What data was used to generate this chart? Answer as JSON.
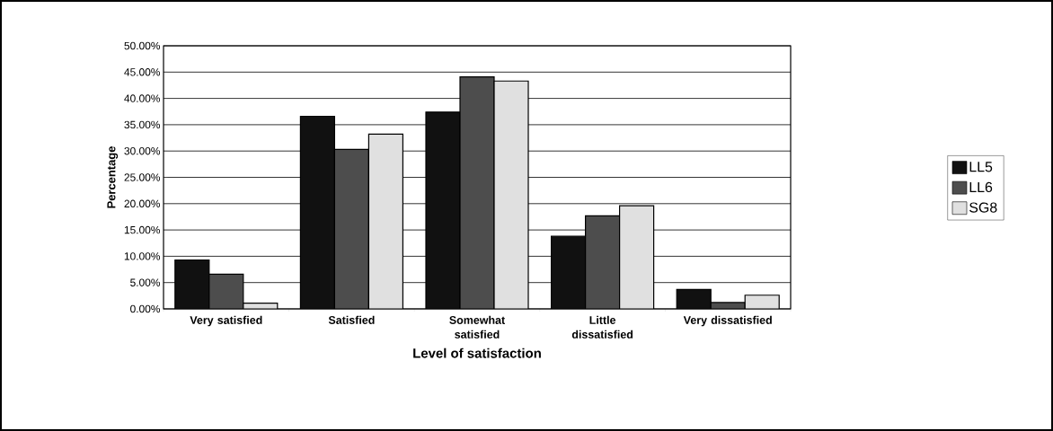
{
  "chart_data": {
    "type": "bar",
    "xlabel": "Level of satisfaction",
    "ylabel": "Percentage",
    "categories": [
      "Very satisfied",
      "Satisfied",
      "Somewhat satisfied",
      "Little dissatisfied",
      "Very dissatisfied"
    ],
    "series": [
      {
        "name": "LL5",
        "color": "#111111",
        "values": [
          9.3,
          36.6,
          37.4,
          13.8,
          3.7
        ]
      },
      {
        "name": "LL6",
        "color": "#4d4d4d",
        "values": [
          6.6,
          30.3,
          44.1,
          17.7,
          1.2
        ]
      },
      {
        "name": "SG8",
        "color": "#e0e0e0",
        "values": [
          1.1,
          33.2,
          43.3,
          19.6,
          2.6
        ]
      }
    ],
    "ylim": [
      0,
      50
    ],
    "yticks": [
      {
        "value": 0,
        "label": "0.00%"
      },
      {
        "value": 5,
        "label": "5.00%"
      },
      {
        "value": 10,
        "label": "10.00%"
      },
      {
        "value": 15,
        "label": "15.00%"
      },
      {
        "value": 20,
        "label": "20.00%"
      },
      {
        "value": 25,
        "label": "25.00%"
      },
      {
        "value": 30,
        "label": "30.00%"
      },
      {
        "value": 35,
        "label": "35.00%"
      },
      {
        "value": 40,
        "label": "40.00%"
      },
      {
        "value": 45,
        "label": "45.00%"
      },
      {
        "value": 50,
        "label": "50.00%"
      }
    ],
    "grid": "y",
    "legend": "right"
  }
}
